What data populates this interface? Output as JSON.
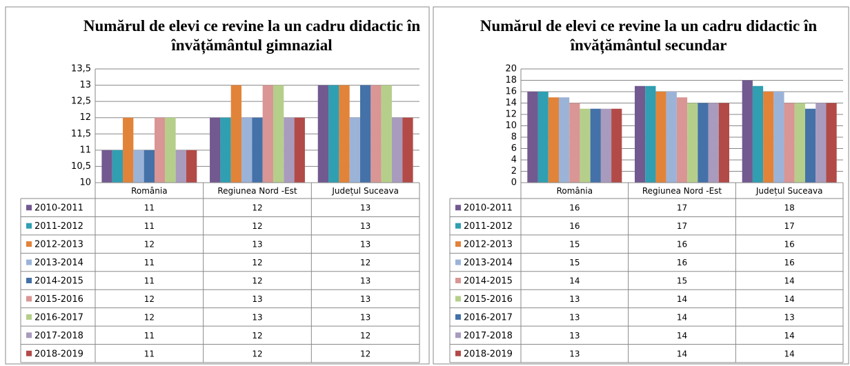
{
  "chart_data": [
    {
      "type": "bar",
      "title": "Numărul de elevi ce revine la un cadru didactic în învățământul gimnazial",
      "categories": [
        "România",
        "Regiunea Nord -Est",
        "Județul Suceava"
      ],
      "series": [
        {
          "name": "2010-2011",
          "color": "#725990",
          "values": [
            11,
            12,
            13
          ]
        },
        {
          "name": "2011-2012",
          "color": "#2f9fb1",
          "values": [
            11,
            12,
            13
          ]
        },
        {
          "name": "2012-2013",
          "color": "#e2833a",
          "values": [
            12,
            13,
            13
          ]
        },
        {
          "name": "2013-2014",
          "color": "#9cb3d8",
          "values": [
            11,
            12,
            12
          ]
        },
        {
          "name": "2014-2015",
          "color": "#4471a8",
          "values": [
            11,
            12,
            13
          ]
        },
        {
          "name": "2015-2016",
          "color": "#d99694",
          "values": [
            12,
            13,
            13
          ]
        },
        {
          "name": "2016-2017",
          "color": "#b5cf8a",
          "values": [
            12,
            13,
            13
          ]
        },
        {
          "name": "2017-2018",
          "color": "#a99bbd",
          "values": [
            11,
            12,
            12
          ]
        },
        {
          "name": "2018-2019",
          "color": "#b24a48",
          "values": [
            11,
            12,
            12
          ]
        }
      ],
      "ylim": [
        10,
        13.5
      ],
      "yticks": [
        10,
        {
          "value": 10.5,
          "label": "10,5"
        },
        11,
        {
          "value": 11.5,
          "label": "11,5"
        },
        12,
        {
          "value": 12.5,
          "label": "12,5"
        },
        13,
        {
          "value": 13.5,
          "label": "13,5"
        }
      ],
      "grid": true
    },
    {
      "type": "bar",
      "title": "Numărul de elevi ce revine la un cadru didactic în învățământul secundar",
      "categories": [
        "România",
        "Regiunea Nord -Est",
        "Județul Suceava"
      ],
      "series": [
        {
          "name": "2010-2011",
          "color": "#725990",
          "values": [
            16,
            17,
            18
          ]
        },
        {
          "name": "2011-2012",
          "color": "#2f9fb1",
          "values": [
            16,
            17,
            17
          ]
        },
        {
          "name": "2012-2013",
          "color": "#e2833a",
          "values": [
            15,
            16,
            16
          ]
        },
        {
          "name": "2013-2014",
          "color": "#9cb3d8",
          "values": [
            15,
            16,
            16
          ]
        },
        {
          "name": "2014-2015",
          "color": "#d99694",
          "values": [
            14,
            15,
            14
          ]
        },
        {
          "name": "2015-2016",
          "color": "#b5cf8a",
          "values": [
            13,
            14,
            14
          ]
        },
        {
          "name": "2016-2017",
          "color": "#4471a8",
          "values": [
            13,
            14,
            13
          ]
        },
        {
          "name": "2017-2018",
          "color": "#a99bbd",
          "values": [
            13,
            14,
            14
          ]
        },
        {
          "name": "2018-2019",
          "color": "#b24a48",
          "values": [
            13,
            14,
            14
          ]
        }
      ],
      "ylim": [
        0,
        20
      ],
      "yticks": [
        0,
        2,
        4,
        6,
        8,
        10,
        12,
        14,
        16,
        18,
        20
      ],
      "grid": true
    }
  ]
}
